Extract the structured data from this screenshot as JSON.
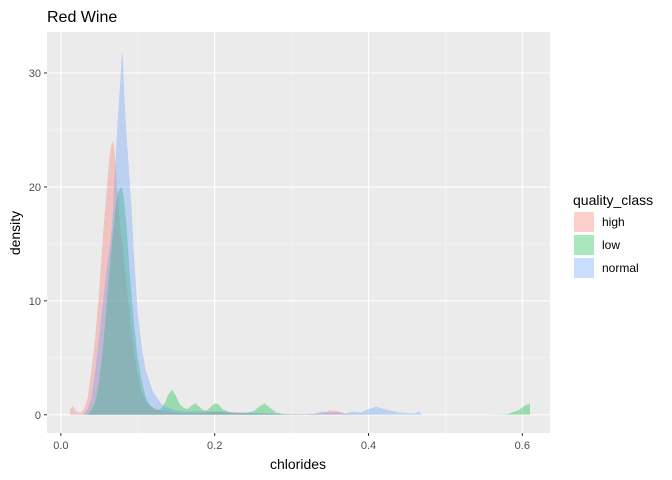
{
  "chart_data": {
    "type": "area",
    "title": "Red Wine",
    "xlabel": "chlorides",
    "ylabel": "density",
    "xlim": [
      -0.018,
      0.636
    ],
    "ylim": [
      -1.6,
      33.6
    ],
    "x_ticks": [
      0.0,
      0.2,
      0.4,
      0.6
    ],
    "x_tick_labels": [
      "0.0",
      "0.2",
      "0.4",
      "0.6"
    ],
    "x_minor_ticks": [
      0.1,
      0.3,
      0.5
    ],
    "y_ticks": [
      0,
      10,
      20,
      30
    ],
    "y_tick_labels": [
      "0",
      "10",
      "20",
      "30"
    ],
    "y_minor_ticks": [
      5,
      15,
      25
    ],
    "grid": true,
    "legend": {
      "title": "quality_class",
      "placement": "right"
    },
    "series": [
      {
        "name": "high",
        "color": "#F8766D",
        "x": [
          0.012,
          0.015,
          0.02,
          0.025,
          0.03,
          0.035,
          0.04,
          0.045,
          0.05,
          0.055,
          0.06,
          0.063,
          0.066,
          0.068,
          0.07,
          0.072,
          0.074,
          0.076,
          0.078,
          0.08,
          0.083,
          0.086,
          0.09,
          0.095,
          0.1,
          0.105,
          0.11,
          0.12,
          0.13,
          0.14,
          0.15,
          0.16,
          0.17,
          0.18,
          0.2,
          0.22,
          0.24,
          0.26,
          0.28,
          0.3,
          0.32,
          0.34,
          0.35,
          0.36,
          0.37,
          0.38,
          0.4,
          0.42
        ],
        "y": [
          0.4,
          0.8,
          0.3,
          0.15,
          0.5,
          1.5,
          4,
          7,
          11,
          16,
          20,
          22.5,
          23.8,
          24,
          23,
          21,
          19,
          17.5,
          16,
          15,
          13,
          11,
          8.5,
          5.5,
          3.5,
          2,
          1.2,
          0.6,
          0.4,
          0.3,
          0.2,
          0.15,
          0.2,
          0.15,
          0.3,
          0.25,
          0.15,
          0.1,
          0.05,
          0.05,
          0.05,
          0.1,
          0.4,
          0.3,
          0.1,
          0.05,
          0.02,
          0.0
        ]
      },
      {
        "name": "low",
        "color": "#00BA38",
        "x": [
          0.035,
          0.04,
          0.045,
          0.05,
          0.055,
          0.06,
          0.065,
          0.07,
          0.074,
          0.078,
          0.08,
          0.082,
          0.086,
          0.09,
          0.095,
          0.1,
          0.105,
          0.11,
          0.115,
          0.12,
          0.125,
          0.13,
          0.135,
          0.14,
          0.145,
          0.15,
          0.155,
          0.16,
          0.165,
          0.17,
          0.175,
          0.18,
          0.185,
          0.19,
          0.2,
          0.205,
          0.21,
          0.22,
          0.23,
          0.24,
          0.25,
          0.26,
          0.265,
          0.27,
          0.28,
          0.29,
          0.3,
          0.32,
          0.35,
          0.4,
          0.45,
          0.5,
          0.55,
          0.58,
          0.595,
          0.603,
          0.61
        ],
        "y": [
          0.05,
          0.4,
          1.2,
          3,
          6,
          10,
          14,
          17.5,
          19.5,
          20,
          19.8,
          19,
          16,
          12,
          8,
          5,
          3,
          1.6,
          0.9,
          0.6,
          0.4,
          0.5,
          1,
          1.8,
          2.2,
          1.6,
          0.9,
          0.6,
          0.5,
          0.8,
          1,
          0.7,
          0.4,
          0.4,
          1.0,
          0.9,
          0.5,
          0.2,
          0.15,
          0.15,
          0.3,
          0.8,
          1.0,
          0.7,
          0.2,
          0.05,
          0.02,
          0.01,
          0.0,
          0.0,
          0.0,
          0.0,
          0.0,
          0.05,
          0.4,
          0.8,
          1.0
        ]
      },
      {
        "name": "normal",
        "color": "#619CFF",
        "x": [
          0.03,
          0.035,
          0.04,
          0.045,
          0.05,
          0.055,
          0.06,
          0.065,
          0.068,
          0.07,
          0.072,
          0.074,
          0.076,
          0.078,
          0.079,
          0.08,
          0.081,
          0.082,
          0.084,
          0.086,
          0.088,
          0.09,
          0.092,
          0.095,
          0.1,
          0.105,
          0.11,
          0.115,
          0.12,
          0.13,
          0.14,
          0.15,
          0.16,
          0.17,
          0.18,
          0.2,
          0.22,
          0.24,
          0.26,
          0.28,
          0.3,
          0.32,
          0.33,
          0.34,
          0.35,
          0.36,
          0.37,
          0.38,
          0.39,
          0.4,
          0.41,
          0.42,
          0.44,
          0.46,
          0.465,
          0.47
        ],
        "y": [
          0.1,
          0.5,
          1.5,
          4,
          7,
          10,
          13,
          15.5,
          18,
          21,
          23.5,
          26,
          28,
          30,
          31.3,
          31.8,
          31,
          29,
          26,
          24,
          22,
          20,
          18,
          14,
          9,
          6,
          4,
          3,
          2,
          1,
          0.6,
          0.4,
          0.3,
          0.3,
          0.3,
          0.25,
          0.2,
          0.2,
          0.15,
          0.1,
          0.05,
          0.05,
          0.1,
          0.3,
          0.2,
          0.25,
          0.1,
          0.3,
          0.2,
          0.5,
          0.7,
          0.5,
          0.2,
          0.1,
          0.3,
          0.0
        ]
      }
    ]
  }
}
